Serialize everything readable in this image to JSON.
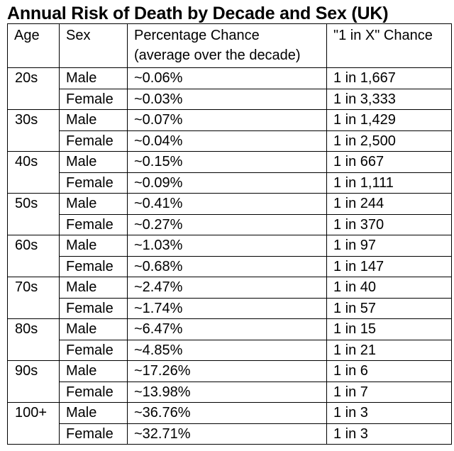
{
  "title": "Annual Risk of Death by Decade and Sex (UK)",
  "headers": {
    "age": "Age",
    "sex": "Sex",
    "percentage_line1": "Percentage Chance",
    "percentage_line2": "(average over the decade)",
    "one_in_x": "\"1 in X\" Chance"
  },
  "rows": [
    {
      "age": "20s",
      "male": {
        "sex": "Male",
        "pct": "~0.06%",
        "odds": "1 in 1,667"
      },
      "female": {
        "sex": "Female",
        "pct": "~0.03%",
        "odds": "1 in 3,333"
      }
    },
    {
      "age": "30s",
      "male": {
        "sex": "Male",
        "pct": "~0.07%",
        "odds": "1 in 1,429"
      },
      "female": {
        "sex": "Female",
        "pct": "~0.04%",
        "odds": "1 in 2,500"
      }
    },
    {
      "age": "40s",
      "male": {
        "sex": "Male",
        "pct": "~0.15%",
        "odds": "1 in 667"
      },
      "female": {
        "sex": "Female",
        "pct": "~0.09%",
        "odds": "1 in 1,111"
      }
    },
    {
      "age": "50s",
      "male": {
        "sex": "Male",
        "pct": "~0.41%",
        "odds": "1 in 244"
      },
      "female": {
        "sex": "Female",
        "pct": "~0.27%",
        "odds": "1 in 370"
      }
    },
    {
      "age": "60s",
      "male": {
        "sex": "Male",
        "pct": "~1.03%",
        "odds": "1 in 97"
      },
      "female": {
        "sex": "Female",
        "pct": "~0.68%",
        "odds": "1 in 147"
      }
    },
    {
      "age": "70s",
      "male": {
        "sex": "Male",
        "pct": "~2.47%",
        "odds": "1 in 40"
      },
      "female": {
        "sex": "Female",
        "pct": "~1.74%",
        "odds": "1 in 57"
      }
    },
    {
      "age": "80s",
      "male": {
        "sex": "Male",
        "pct": "~6.47%",
        "odds": "1 in 15"
      },
      "female": {
        "sex": "Female",
        "pct": "~4.85%",
        "odds": "1 in 21"
      }
    },
    {
      "age": "90s",
      "male": {
        "sex": "Male",
        "pct": "~17.26%",
        "odds": "1 in 6"
      },
      "female": {
        "sex": "Female",
        "pct": "~13.98%",
        "odds": "1 in 7"
      }
    },
    {
      "age": "100+",
      "male": {
        "sex": "Male",
        "pct": "~36.76%",
        "odds": "1 in 3"
      },
      "female": {
        "sex": "Female",
        "pct": "~32.71%",
        "odds": "1 in 3"
      }
    }
  ]
}
